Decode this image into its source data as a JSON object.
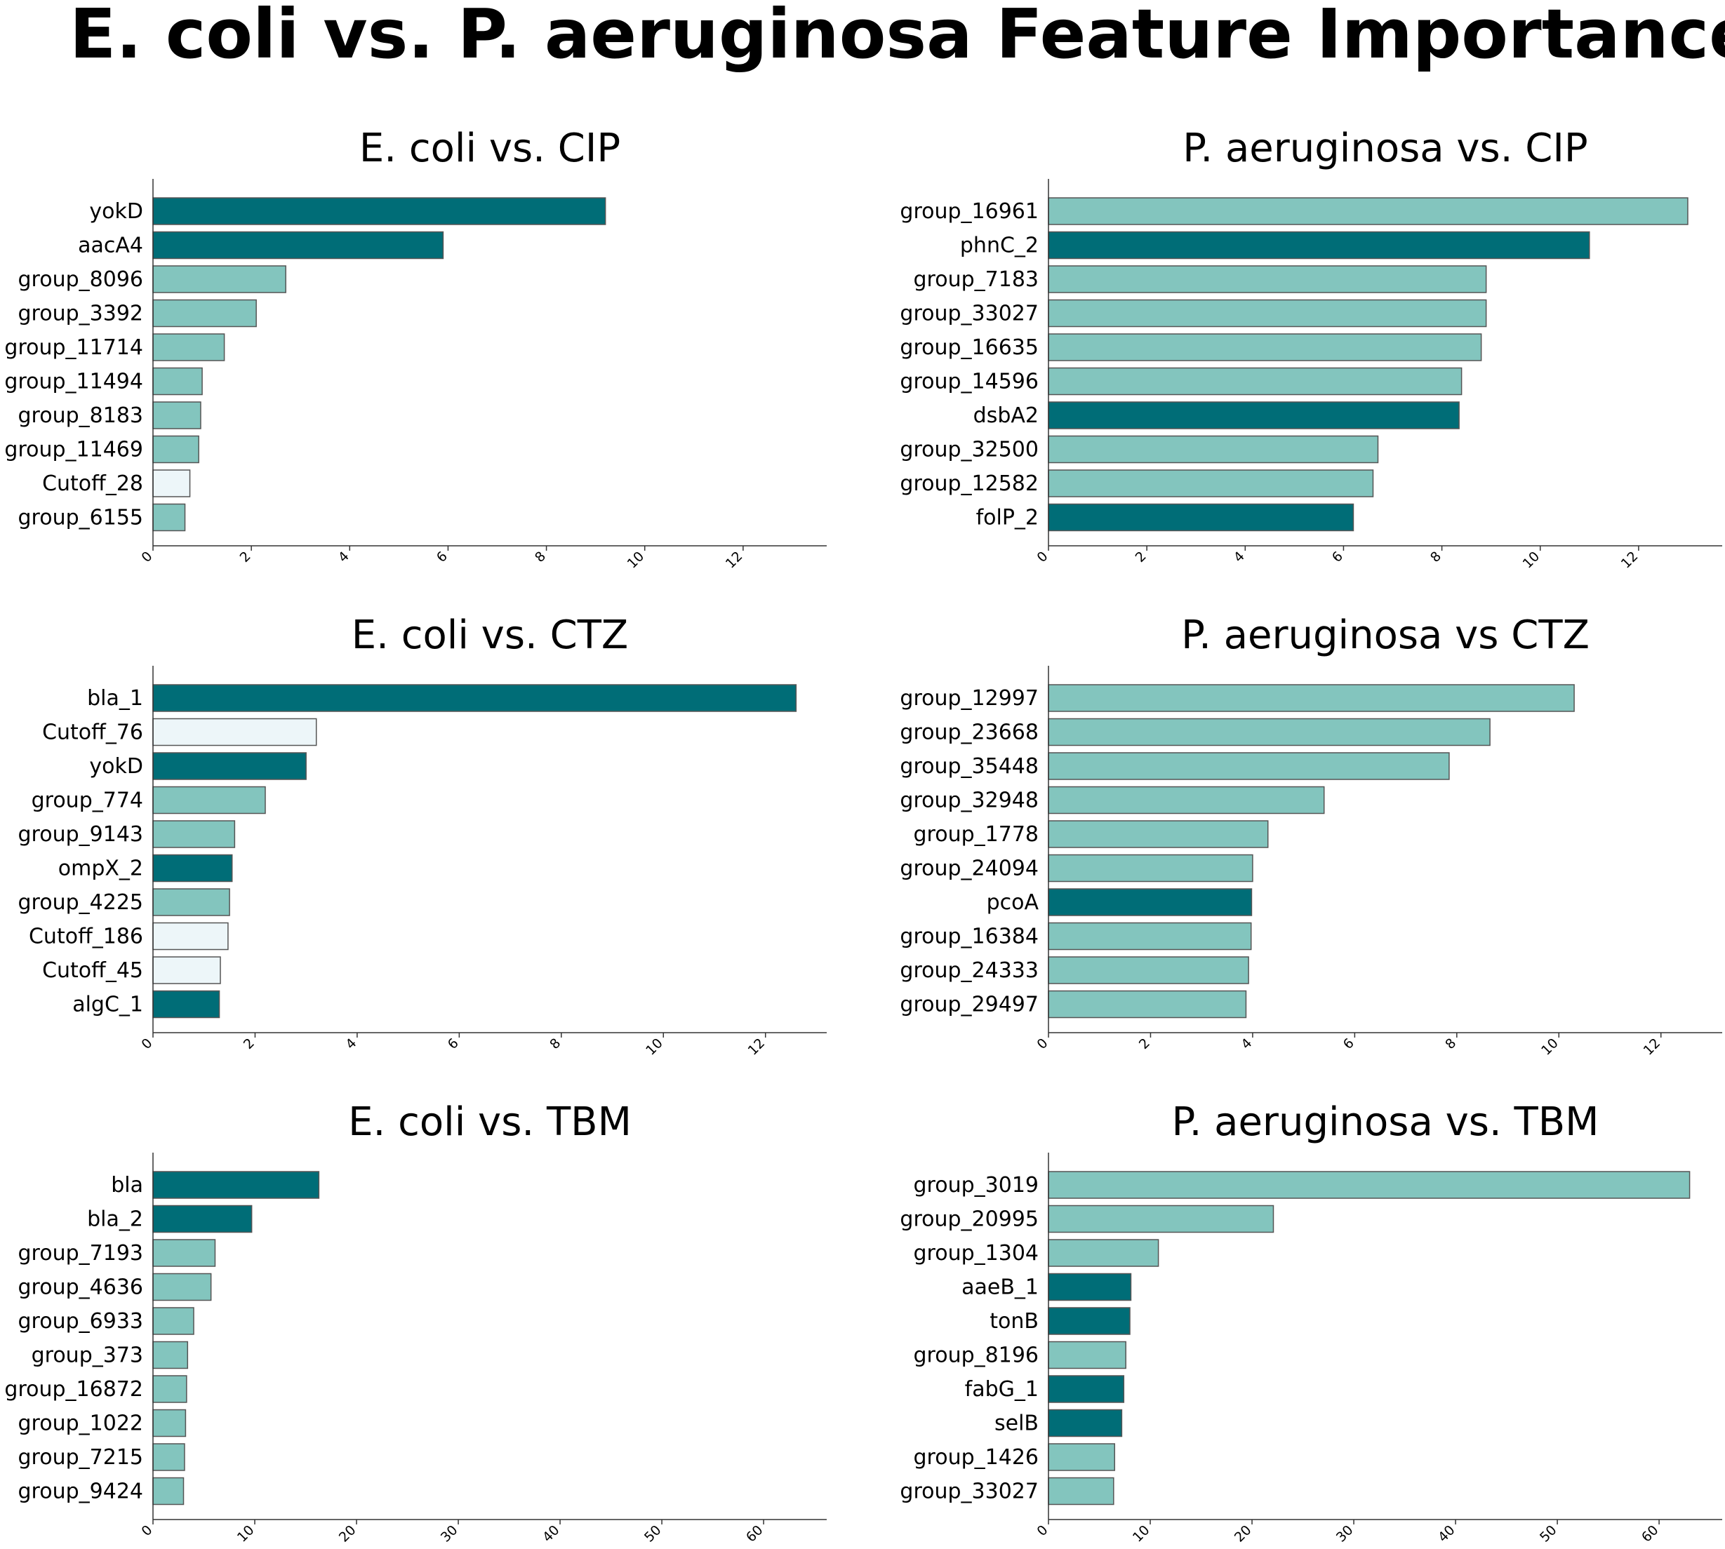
{
  "title": "E. coli vs. P. aeruginosa Feature Importance",
  "colors": {
    "dark": "#006d77",
    "medium": "#83c5be",
    "light": "#edf6f9",
    "edge": "#555555"
  },
  "chart_data": [
    {
      "type": "bar",
      "orientation": "horizontal",
      "title": "E. coli vs. CIP",
      "categories": [
        "yokD",
        "aacA4",
        "group_8096",
        "group_3392",
        "group_11714",
        "group_11494",
        "group_8183",
        "group_11469",
        "Cutoff_28",
        "group_6155"
      ],
      "values": [
        9.2,
        5.9,
        2.7,
        2.1,
        1.45,
        1.0,
        0.97,
        0.93,
        0.75,
        0.65
      ],
      "bar_colors": [
        "dark",
        "dark",
        "medium",
        "medium",
        "medium",
        "medium",
        "medium",
        "medium",
        "light",
        "medium"
      ],
      "xlim": [
        0,
        13.7
      ],
      "xticks": [
        0,
        2,
        4,
        6,
        8,
        10,
        12
      ],
      "xlabel": "",
      "ylabel": ""
    },
    {
      "type": "bar",
      "orientation": "horizontal",
      "title": "P. aeruginosa vs. CIP",
      "categories": [
        "group_16961",
        "phnC_2",
        "group_7183",
        "group_33027",
        "group_16635",
        "group_14596",
        "dsbA2",
        "group_32500",
        "group_12582",
        "folP_2"
      ],
      "values": [
        13.0,
        11.0,
        8.9,
        8.9,
        8.8,
        8.4,
        8.35,
        6.7,
        6.6,
        6.2
      ],
      "bar_colors": [
        "medium",
        "dark",
        "medium",
        "medium",
        "medium",
        "medium",
        "dark",
        "medium",
        "medium",
        "dark"
      ],
      "xlim": [
        0,
        13.7
      ],
      "xticks": [
        0,
        2,
        4,
        6,
        8,
        10,
        12
      ],
      "xlabel": "",
      "ylabel": ""
    },
    {
      "type": "bar",
      "orientation": "horizontal",
      "title": "E. coli vs. CTZ",
      "categories": [
        "bla_1",
        "Cutoff_76",
        "yokD",
        "group_774",
        "group_9143",
        "ompX_2",
        "group_4225",
        "Cutoff_186",
        "Cutoff_45",
        "algC_1"
      ],
      "values": [
        12.6,
        3.2,
        3.0,
        2.2,
        1.6,
        1.55,
        1.5,
        1.47,
        1.32,
        1.3
      ],
      "bar_colors": [
        "dark",
        "light",
        "dark",
        "medium",
        "medium",
        "dark",
        "medium",
        "light",
        "light",
        "dark"
      ],
      "xlim": [
        0,
        13.2
      ],
      "xticks": [
        0,
        2,
        4,
        6,
        8,
        10,
        12
      ],
      "xlabel": "",
      "ylabel": ""
    },
    {
      "type": "bar",
      "orientation": "horizontal",
      "title": "P. aeruginosa vs CTZ",
      "categories": [
        "group_12997",
        "group_23668",
        "group_35448",
        "group_32948",
        "group_1778",
        "group_24094",
        "pcoA",
        "group_16384",
        "group_24333",
        "group_29497"
      ],
      "values": [
        10.3,
        8.65,
        7.85,
        5.4,
        4.3,
        4.0,
        3.98,
        3.97,
        3.92,
        3.87
      ],
      "bar_colors": [
        "medium",
        "medium",
        "medium",
        "medium",
        "medium",
        "medium",
        "dark",
        "medium",
        "medium",
        "medium"
      ],
      "xlim": [
        0,
        13.2
      ],
      "xticks": [
        0,
        2,
        4,
        6,
        8,
        10,
        12
      ],
      "xlabel": "",
      "ylabel": ""
    },
    {
      "type": "bar",
      "orientation": "horizontal",
      "title": "E. coli vs. TBM",
      "categories": [
        "bla",
        "bla_2",
        "group_7193",
        "group_4636",
        "group_6933",
        "group_373",
        "group_16872",
        "group_1022",
        "group_7215",
        "group_9424"
      ],
      "values": [
        16.3,
        9.7,
        6.1,
        5.7,
        4.0,
        3.4,
        3.3,
        3.2,
        3.1,
        3.0
      ],
      "bar_colors": [
        "dark",
        "dark",
        "medium",
        "medium",
        "medium",
        "medium",
        "medium",
        "medium",
        "medium",
        "medium"
      ],
      "xlim": [
        0,
        66.2
      ],
      "xticks": [
        0,
        10,
        20,
        30,
        40,
        50,
        60
      ],
      "xlabel": "",
      "ylabel": ""
    },
    {
      "type": "bar",
      "orientation": "horizontal",
      "title": "P. aeruginosa vs. TBM",
      "categories": [
        "group_3019",
        "group_20995",
        "group_1304",
        "aaeB_1",
        "tonB",
        "group_8196",
        "fabG_1",
        "selB",
        "group_1426",
        "group_33027"
      ],
      "values": [
        63.0,
        22.1,
        10.8,
        8.1,
        8.0,
        7.6,
        7.4,
        7.2,
        6.5,
        6.4
      ],
      "bar_colors": [
        "medium",
        "medium",
        "medium",
        "dark",
        "dark",
        "medium",
        "dark",
        "dark",
        "medium",
        "medium"
      ],
      "xlim": [
        0,
        66.2
      ],
      "xticks": [
        0,
        10,
        20,
        30,
        40,
        50,
        60
      ],
      "xlabel": "",
      "ylabel": ""
    }
  ]
}
